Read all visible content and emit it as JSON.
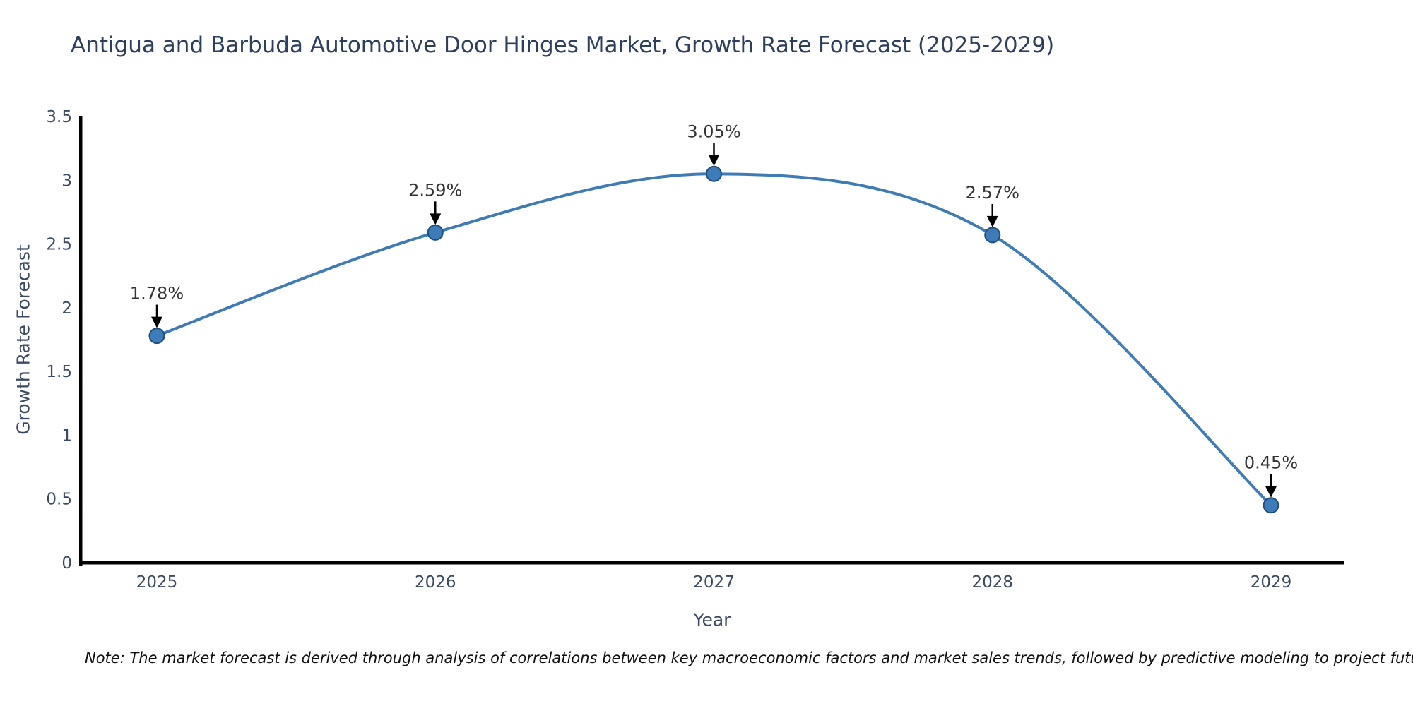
{
  "chart_data": {
    "type": "line",
    "title": "Antigua and Barbuda Automotive Door Hinges Market, Growth Rate Forecast (2025-2029)",
    "x": [
      "2025",
      "2026",
      "2027",
      "2028",
      "2029"
    ],
    "values": [
      1.78,
      2.59,
      3.05,
      2.57,
      0.45
    ],
    "point_labels": [
      "1.78%",
      "2.59%",
      "3.05%",
      "2.57%",
      "0.45%"
    ],
    "xlabel": "Year",
    "ylabel": "Growth Rate Forecast",
    "y_ticks": [
      "0",
      "0.5",
      "1",
      "1.5",
      "2",
      "2.5",
      "3",
      "3.5"
    ],
    "y_tick_values": [
      0,
      0.5,
      1,
      1.5,
      2,
      2.5,
      3,
      3.5
    ],
    "ylim": [
      0,
      3.5
    ],
    "grid": false,
    "legend": "none",
    "smooth": true,
    "line_color": "#3f7cb6",
    "marker_fill": "#3d7cb8",
    "marker_edge": "#1f4e79",
    "annotation_color": "#333333",
    "arrow_color": "#000000",
    "axis_color": "#000000",
    "tick_label_color": "#3b4a63",
    "title_color": "#2d3f5e",
    "background_color": "#ffffff"
  },
  "note": {
    "text": "Note: The market forecast is derived through analysis of correlations between key macroeconomic factors and market sales trends, followed by predictive modeling to project future sales"
  }
}
